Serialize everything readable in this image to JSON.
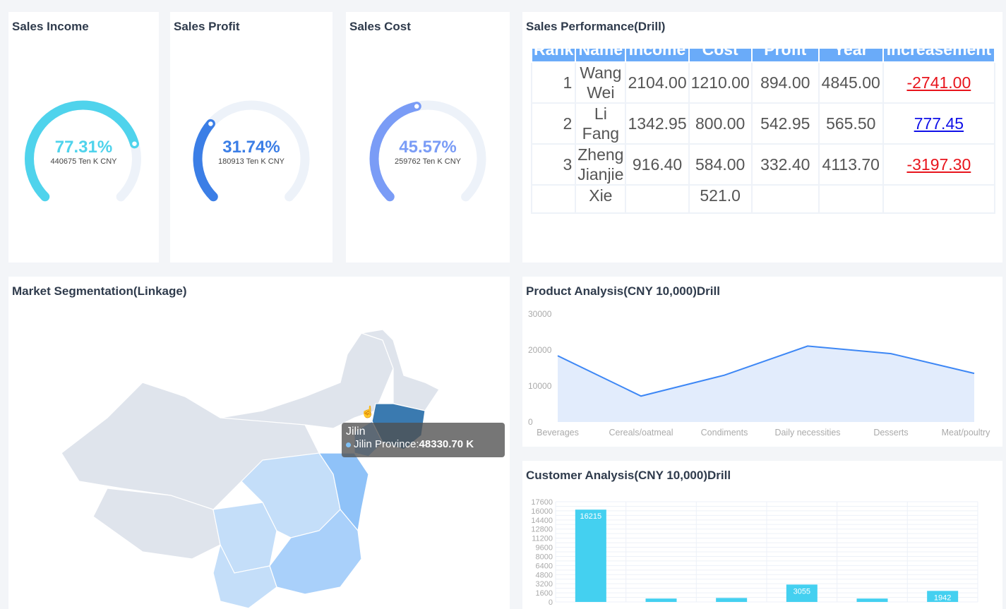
{
  "gauges": [
    {
      "title": "Sales Income",
      "percent": "77.31%",
      "value": 0.7731,
      "sub": "440675 Ten K CNY",
      "color": "#4fd3ec"
    },
    {
      "title": "Sales Profit",
      "percent": "31.74%",
      "value": 0.3174,
      "sub": "180913 Ten K CNY",
      "color": "#3b7ee6"
    },
    {
      "title": "Sales Cost",
      "percent": "45.57%",
      "value": 0.4557,
      "sub": "259762 Ten K CNY",
      "color": "#7a9cf6"
    }
  ],
  "performance": {
    "title": "Sales Performance(Drill)",
    "headers": [
      "Rank",
      "Name",
      "Income",
      "Cost",
      "Profit",
      "Last Year",
      "Increasement"
    ],
    "rows": [
      {
        "rank": "1",
        "name": "Wang Wei",
        "income": "2104.00",
        "cost": "1210.00",
        "profit": "894.00",
        "last": "4845.00",
        "inc": "-2741.00",
        "color": "#e8141c"
      },
      {
        "rank": "2",
        "name": "Li Fang",
        "income": "1342.95",
        "cost": "800.00",
        "profit": "542.95",
        "last": "565.50",
        "inc": "777.45",
        "color": "#1010e8"
      },
      {
        "rank": "3",
        "name": "Zheng Jianjie",
        "income": "916.40",
        "cost": "584.00",
        "profit": "332.40",
        "last": "4113.70",
        "inc": "-3197.30",
        "color": "#e8141c"
      },
      {
        "rank": "",
        "name": "Xie",
        "income": "",
        "cost": "521.0",
        "profit": "",
        "last": "",
        "inc": "",
        "color": "#555"
      }
    ]
  },
  "map": {
    "title": "Market Segmentation(Linkage)",
    "tooltip_title": "Jilin",
    "tooltip_label": "Jilin Province:",
    "tooltip_value": "48330.70 K"
  },
  "chart_data": [
    {
      "type": "area",
      "title": "Product Analysis(CNY 10,000)Drill",
      "categories": [
        "Beverages",
        "Cereals/oatmeal",
        "Condiments",
        "Daily necessities",
        "Desserts",
        "Meat/poultry"
      ],
      "values": [
        18400,
        7200,
        13000,
        21100,
        19000,
        13500
      ],
      "ylim": [
        0,
        30000
      ],
      "yticks": [
        "0",
        "10000",
        "20000",
        "30000"
      ],
      "color": "#3d87f5"
    },
    {
      "type": "bar",
      "title": "Customer Analysis(CNY 10,000)Drill",
      "categories": [
        "",
        "",
        "",
        "",
        "",
        ""
      ],
      "values": [
        16215,
        600,
        700,
        3055,
        600,
        1942
      ],
      "labels": [
        "16215",
        "",
        "",
        "3055",
        "",
        "1942"
      ],
      "ylim": [
        0,
        17600
      ],
      "yticks": [
        "0",
        "1600",
        "3200",
        "4800",
        "6400",
        "8000",
        "9600",
        "11200",
        "12800",
        "14400",
        "16000",
        "17600"
      ],
      "grid": true,
      "color": "#44d0f0"
    }
  ]
}
